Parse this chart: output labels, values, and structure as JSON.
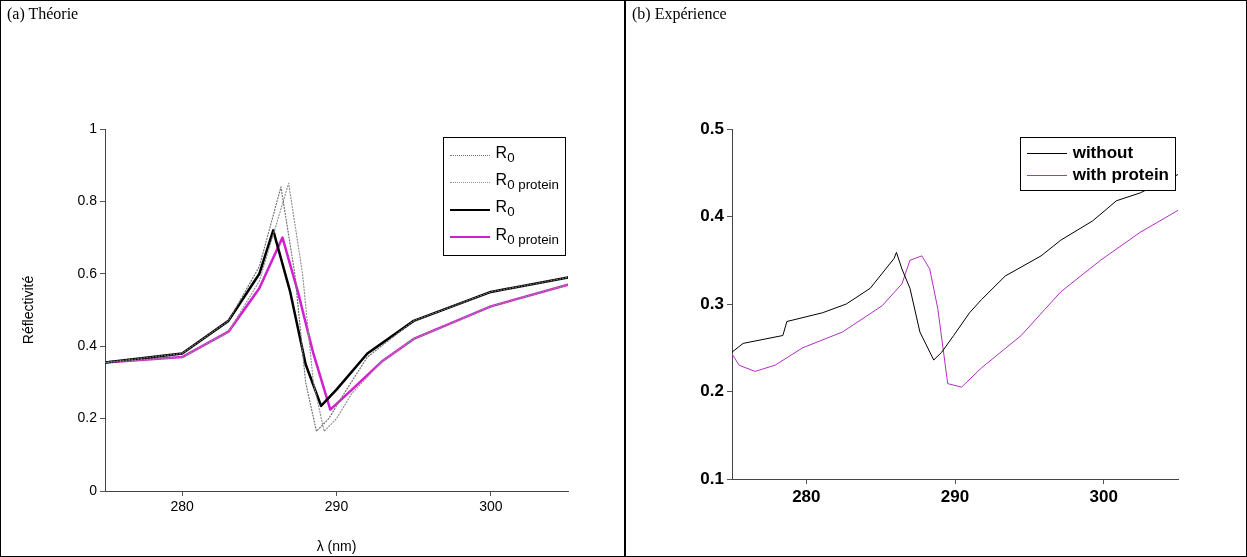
{
  "chart_data": [
    {
      "type": "line",
      "title": "(a) Théorie",
      "xlabel": "λ (nm)",
      "ylabel": "Réflectivité",
      "xlim": [
        275,
        305
      ],
      "ylim": [
        0,
        1
      ],
      "xticks": [
        280,
        290,
        300
      ],
      "yticks": [
        0,
        0.2,
        0.4,
        0.6,
        0.8,
        1
      ],
      "grid": false,
      "legend": "top right",
      "marker": "none",
      "series": [
        {
          "name": "R$_{0}$",
          "color": "#707070",
          "line_style": "dotted",
          "x": [
            275,
            280,
            283,
            285,
            286.4,
            287.3,
            288,
            288.7,
            289.5,
            290.5,
            292,
            295,
            300,
            305
          ],
          "values": [
            0.355,
            0.38,
            0.47,
            0.62,
            0.84,
            0.6,
            0.3,
            0.165,
            0.2,
            0.27,
            0.37,
            0.47,
            0.55,
            0.59
          ]
        },
        {
          "name": "R$_{0 protein}$",
          "color": "#909090",
          "line_style": "dotted",
          "x": [
            275,
            280,
            283,
            285,
            286.9,
            287.8,
            288.5,
            289.2,
            290,
            291,
            293,
            295,
            300,
            305
          ],
          "values": [
            0.355,
            0.37,
            0.44,
            0.58,
            0.85,
            0.6,
            0.3,
            0.165,
            0.2,
            0.27,
            0.36,
            0.42,
            0.51,
            0.57
          ]
        },
        {
          "name": "R$_{0}$",
          "color": "#000000",
          "line_style": "solid",
          "x": [
            275,
            280,
            283,
            285,
            285.9,
            287,
            288,
            289,
            290,
            292,
            295,
            300,
            305
          ],
          "values": [
            0.355,
            0.38,
            0.47,
            0.6,
            0.72,
            0.55,
            0.35,
            0.235,
            0.28,
            0.38,
            0.47,
            0.55,
            0.59
          ]
        },
        {
          "name": "R$_{0 protein}$",
          "color": "#d020d0",
          "line_style": "solid",
          "x": [
            275,
            280,
            283,
            285,
            286.5,
            287.5,
            288.5,
            289.6,
            291,
            293,
            295,
            300,
            305
          ],
          "values": [
            0.355,
            0.37,
            0.44,
            0.56,
            0.7,
            0.55,
            0.38,
            0.225,
            0.28,
            0.36,
            0.42,
            0.51,
            0.57
          ]
        }
      ]
    },
    {
      "type": "line",
      "title": "(b) Expérience",
      "xlim": [
        275,
        305
      ],
      "ylim": [
        0.1,
        0.5
      ],
      "xticks": [
        280,
        290,
        300
      ],
      "yticks": [
        0.1,
        0.2,
        0.3,
        0.4,
        0.5
      ],
      "grid": false,
      "legend": "top right",
      "marker": "none",
      "series": [
        {
          "name": "without",
          "color": "#000000",
          "line_style": "solid",
          "x": [
            275,
            275.75,
            278.42,
            278.69,
            281.09,
            282.69,
            284.3,
            285.9,
            286.06,
            286.43,
            286.97,
            287.64,
            288.57,
            289.11,
            289.91,
            290.98,
            291.78,
            293.38,
            295.79,
            297.12,
            299.26,
            300.86,
            302.46,
            305
          ],
          "values": [
            0.245,
            0.255,
            0.264,
            0.28,
            0.29,
            0.3,
            0.318,
            0.352,
            0.359,
            0.34,
            0.318,
            0.268,
            0.236,
            0.245,
            0.264,
            0.29,
            0.305,
            0.332,
            0.355,
            0.373,
            0.395,
            0.418,
            0.427,
            0.448
          ]
        },
        {
          "name": "with protein",
          "color": "#b030c0",
          "line_style": "solid",
          "x": [
            275,
            275.48,
            276.55,
            277.89,
            279.76,
            282.43,
            285.1,
            286.43,
            286.97,
            287.77,
            288.3,
            288.84,
            289.51,
            290.44,
            291.78,
            294.45,
            297.12,
            299.79,
            302.46,
            305
          ],
          "values": [
            0.243,
            0.23,
            0.223,
            0.23,
            0.25,
            0.268,
            0.298,
            0.323,
            0.35,
            0.355,
            0.34,
            0.295,
            0.209,
            0.205,
            0.227,
            0.264,
            0.314,
            0.35,
            0.382,
            0.407
          ]
        }
      ]
    }
  ]
}
